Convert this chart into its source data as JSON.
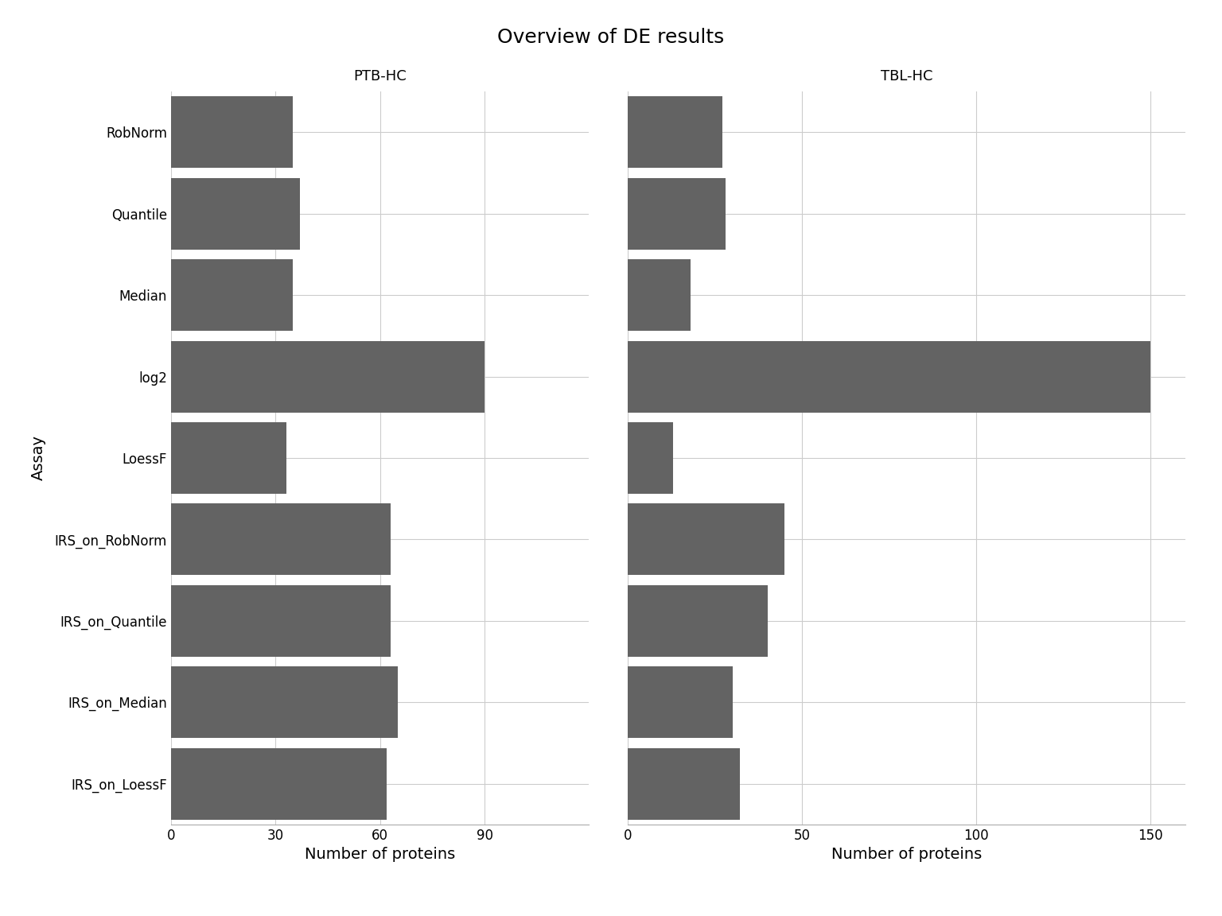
{
  "title": "Overview of DE results",
  "categories": [
    "RobNorm",
    "Quantile",
    "Median",
    "log2",
    "LoessF",
    "IRS_on_RobNorm",
    "IRS_on_Quantile",
    "IRS_on_Median",
    "IRS_on_LoessF"
  ],
  "ptb_hc": [
    35,
    37,
    35,
    90,
    33,
    63,
    63,
    65,
    62
  ],
  "tbl_hc": [
    27,
    28,
    18,
    150,
    13,
    45,
    40,
    30,
    32
  ],
  "ptb_label": "PTB-HC",
  "tbl_label": "TBL-HC",
  "xlabel": "Number of proteins",
  "ylabel": "Assay",
  "bar_color": "#636363",
  "background_color": "#ffffff",
  "ptb_xlim": [
    0,
    120
  ],
  "tbl_xlim": [
    0,
    160
  ],
  "ptb_xticks": [
    0,
    30,
    60,
    90
  ],
  "tbl_xticks": [
    0,
    50,
    100,
    150
  ],
  "title_fontsize": 18,
  "label_fontsize": 14,
  "tick_fontsize": 12,
  "facet_label_fontsize": 13,
  "bar_height": 0.88
}
